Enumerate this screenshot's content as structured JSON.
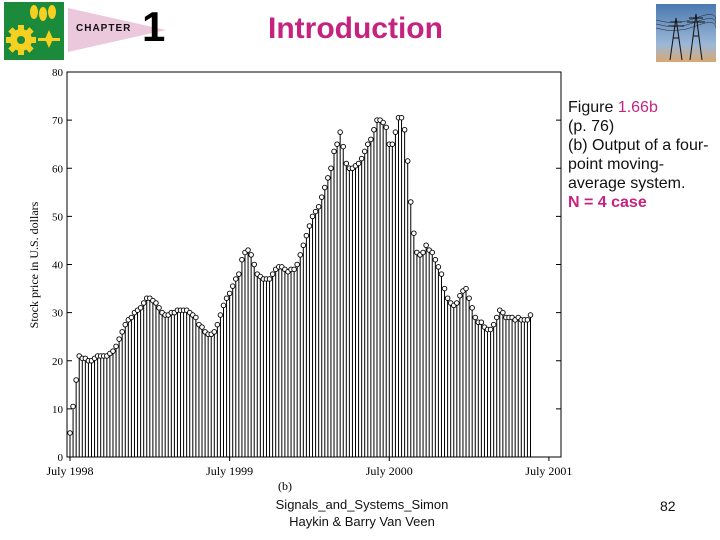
{
  "header": {
    "chapter_label": "CHAPTER",
    "chapter_number": "1",
    "title": "Introduction"
  },
  "caption": {
    "fig_word": "Figure",
    "fig_number": "1.66b",
    "page_ref": "(p. 76)",
    "description": "(b) Output of a four-point moving-average system.",
    "n_case": "N = 4 case"
  },
  "footer": {
    "source_line1": "Signals_and_Systems_Simon",
    "source_line2": "Haykin & Barry Van Veen",
    "page_number": "82"
  },
  "colors": {
    "accent": "#c5237f",
    "logo_green": "#1b8a3a",
    "logo_yellow": "#f5d020"
  },
  "chart_data": {
    "type": "bar",
    "style": "stem plot with open circle markers",
    "ylabel": "Stock price in U.S. dollars",
    "sublabel": "(b)",
    "ylim": [
      0,
      80
    ],
    "yticks": [
      0,
      10,
      20,
      30,
      40,
      50,
      60,
      70,
      80
    ],
    "xtick_labels": [
      "July 1998",
      "July 1999",
      "July 2000",
      "July 2001"
    ],
    "xtick_index": [
      0,
      52,
      104,
      156
    ],
    "values": [
      5,
      10.5,
      16,
      21,
      20.5,
      20.5,
      20,
      20,
      20.5,
      21,
      21,
      21,
      21,
      21.5,
      22,
      23,
      24.5,
      26,
      27.5,
      28.5,
      29,
      30,
      30.5,
      31,
      32,
      33,
      33,
      32.5,
      32,
      31,
      30,
      29.5,
      29.5,
      30,
      30,
      30.5,
      30.5,
      30.5,
      30.5,
      30,
      29.5,
      29,
      27.5,
      27,
      26,
      25.5,
      25.5,
      26,
      27.5,
      29.5,
      31.5,
      33,
      34,
      35.5,
      37,
      38,
      41,
      42.5,
      43,
      42,
      40,
      38,
      37.5,
      37,
      37,
      37,
      38,
      39,
      39.5,
      39.5,
      39,
      38.5,
      39,
      39,
      40,
      42,
      44,
      46,
      48,
      50,
      51,
      52,
      54,
      56,
      58,
      60,
      63.5,
      65,
      67.5,
      64.5,
      61,
      60,
      60,
      60.5,
      61,
      62,
      63.5,
      65,
      66,
      68,
      70,
      70,
      69.5,
      68.5,
      65,
      65,
      67.5,
      70.5,
      70.5,
      68,
      61.5,
      53,
      46.5,
      42.5,
      42,
      42.5,
      44,
      43,
      42.5,
      41,
      39.5,
      38,
      35,
      33,
      32,
      31.5,
      32,
      33.5,
      34.5,
      35,
      33,
      31,
      29,
      28,
      28,
      27,
      26.5,
      26.5,
      27.5,
      29,
      30.5,
      30,
      29,
      29,
      29,
      28.5,
      29,
      28.5,
      28.5,
      28.5,
      29.5
    ]
  }
}
